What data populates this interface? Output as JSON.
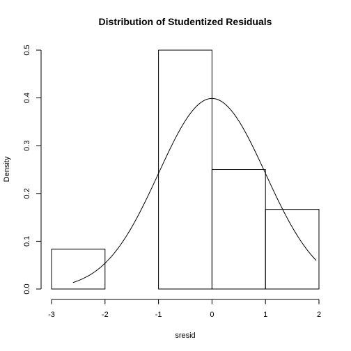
{
  "chart_data": {
    "type": "bar",
    "subtype": "histogram",
    "title": "Distribution of Studentized Residuals",
    "xlabel": "sresid",
    "ylabel": "Density",
    "xlim": [
      -3,
      2
    ],
    "ylim": [
      0,
      0.5
    ],
    "x_ticks": [
      "-3",
      "-2",
      "-1",
      "0",
      "1",
      "2"
    ],
    "y_ticks": [
      "0.0",
      "0.1",
      "0.2",
      "0.3",
      "0.4",
      "0.5"
    ],
    "bins": [
      {
        "start": -3,
        "end": -2,
        "density": 0.0833
      },
      {
        "start": -2,
        "end": -1,
        "density": 0.0
      },
      {
        "start": -1,
        "end": 0,
        "density": 0.5
      },
      {
        "start": 0,
        "end": 1,
        "density": 0.25
      },
      {
        "start": 1,
        "end": 2,
        "density": 0.1667
      }
    ],
    "overlay": {
      "type": "line",
      "description": "normal density curve",
      "mean": 0,
      "sd": 1,
      "x_range": [
        -2.6,
        1.95
      ]
    },
    "grid": false,
    "legend": "none"
  }
}
